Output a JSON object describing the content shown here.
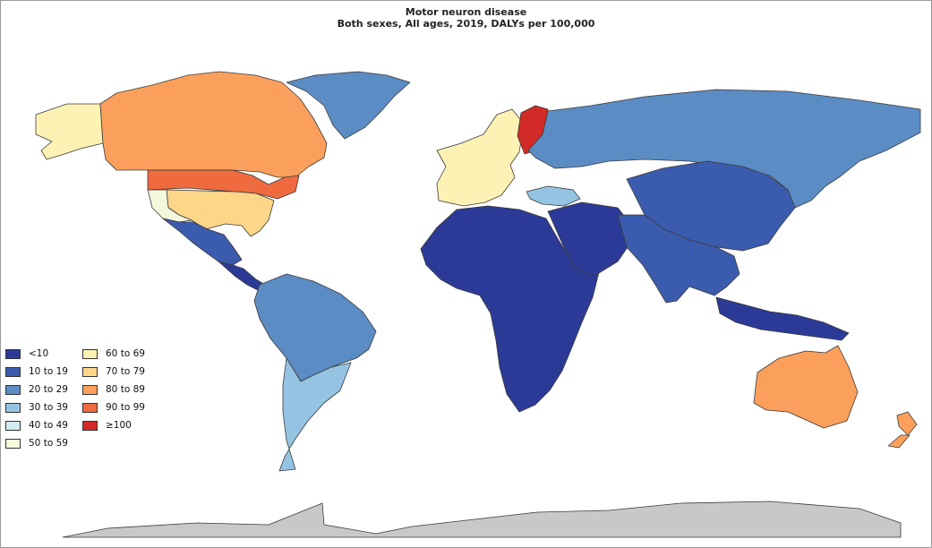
{
  "title": "Motor neuron disease",
  "subtitle": "Both sexes, All ages, 2019, DALYs per 100,000",
  "colors": {
    "no_data": "#c8c8c8",
    "border": "#3a3a3a",
    "ocean": "#ffffff"
  },
  "legend": [
    {
      "label": "<10",
      "color": "#2c3a97"
    },
    {
      "label": "10 to 19",
      "color": "#3b5cae"
    },
    {
      "label": "20 to 29",
      "color": "#5b8cc4"
    },
    {
      "label": "30 to 39",
      "color": "#94c4e2"
    },
    {
      "label": "40 to 49",
      "color": "#d4ebf3"
    },
    {
      "label": "50 to 59",
      "color": "#f4f8dc"
    },
    {
      "label": "60 to 69",
      "color": "#fdf2b4"
    },
    {
      "label": "70 to 79",
      "color": "#fdd68a"
    },
    {
      "label": "80 to 89",
      "color": "#fba05c"
    },
    {
      "label": "90 to 99",
      "color": "#ef6b3f"
    },
    {
      "label": "≥100",
      "color": "#d22a26"
    }
  ],
  "regions": [
    {
      "name": "Alaska",
      "bin": "60 to 69"
    },
    {
      "name": "Canada",
      "bin": "80 to 89"
    },
    {
      "name": "Northern United States",
      "bin": "90 to 99"
    },
    {
      "name": "Southern United States",
      "bin": "70 to 79"
    },
    {
      "name": "Southwestern United States",
      "bin": "50 to 59"
    },
    {
      "name": "Greenland",
      "bin": "20 to 29"
    },
    {
      "name": "Mexico",
      "bin": "10 to 19"
    },
    {
      "name": "Central America",
      "bin": "<10"
    },
    {
      "name": "South America North",
      "bin": "20 to 29"
    },
    {
      "name": "Southern Cone",
      "bin": "30 to 39"
    },
    {
      "name": "Western Europe",
      "bin": "60 to 69"
    },
    {
      "name": "Finland",
      "bin": "≥100"
    },
    {
      "name": "Russia",
      "bin": "20 to 29"
    },
    {
      "name": "Turkey",
      "bin": "30 to 39"
    },
    {
      "name": "Africa",
      "bin": "<10"
    },
    {
      "name": "Middle East",
      "bin": "<10"
    },
    {
      "name": "China",
      "bin": "10 to 19"
    },
    {
      "name": "South Asia",
      "bin": "10 to 19"
    },
    {
      "name": "Indonesia",
      "bin": "<10"
    },
    {
      "name": "Australia",
      "bin": "80 to 89"
    },
    {
      "name": "New Zealand",
      "bin": "80 to 89"
    },
    {
      "name": "Antarctica",
      "bin": "no data"
    }
  ]
}
